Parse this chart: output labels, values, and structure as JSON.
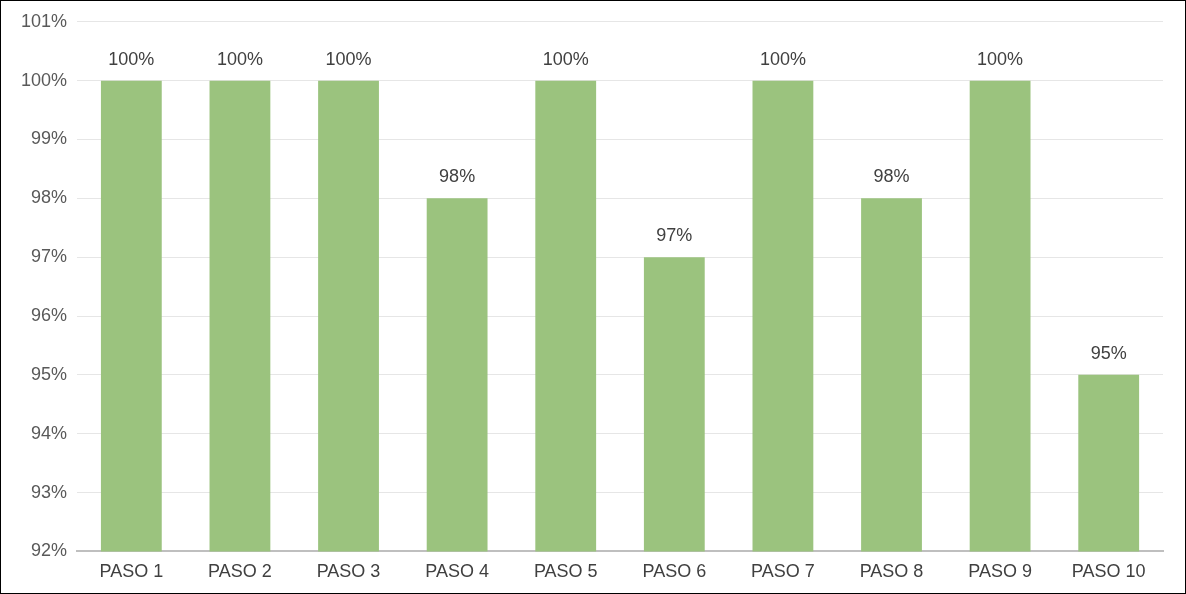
{
  "chart_data": {
    "type": "bar",
    "categories": [
      "PASO 1",
      "PASO 2",
      "PASO 3",
      "PASO 4",
      "PASO 5",
      "PASO 6",
      "PASO 7",
      "PASO 8",
      "PASO 9",
      "PASO 10"
    ],
    "values": [
      100,
      100,
      100,
      98,
      100,
      97,
      100,
      98,
      100,
      95
    ],
    "value_labels": [
      "100%",
      "100%",
      "100%",
      "98%",
      "100%",
      "97%",
      "100%",
      "98%",
      "100%",
      "95%"
    ],
    "color": "#9bc37e",
    "ylim": [
      92,
      101
    ],
    "yticks": [
      {
        "value": 92,
        "label": "92%"
      },
      {
        "value": 93,
        "label": "93%"
      },
      {
        "value": 94,
        "label": "94%"
      },
      {
        "value": 95,
        "label": "95%"
      },
      {
        "value": 96,
        "label": "96%"
      },
      {
        "value": 97,
        "label": "97%"
      },
      {
        "value": 98,
        "label": "98%"
      },
      {
        "value": 99,
        "label": "99%"
      },
      {
        "value": 100,
        "label": "100%"
      },
      {
        "value": 101,
        "label": "101%"
      }
    ],
    "grid": "y",
    "legend": false
  }
}
